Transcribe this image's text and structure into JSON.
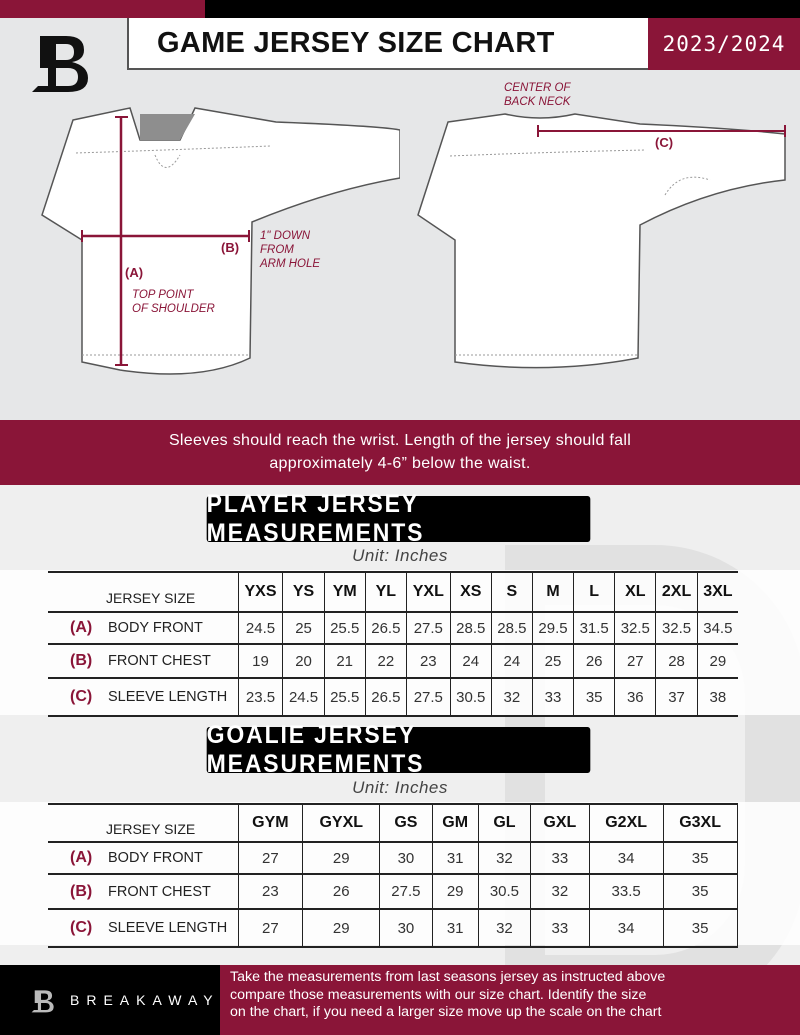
{
  "header": {
    "title": "GAME JERSEY SIZE CHART",
    "season": "2023/2024",
    "accent": "#8a1538"
  },
  "diagram": {
    "front": {
      "label_a": "(A)",
      "note_a": [
        "TOP POINT",
        "OF SHOULDER"
      ],
      "label_b": "(B)",
      "note_b": [
        "1\" DOWN",
        "FROM",
        "ARM HOLE"
      ]
    },
    "back": {
      "note_c": [
        "CENTER OF",
        "BACK NECK"
      ],
      "label_c": "(C)"
    }
  },
  "instruction": [
    "Sleeves should reach the wrist. Length of the jersey should fall",
    "approximately 4-6” below the waist."
  ],
  "player": {
    "title": "PLAYER JERSEY MEASUREMENTS",
    "unit": "Unit: Inches",
    "size_header": "JERSEY SIZE",
    "sizes": [
      "YXS",
      "YS",
      "YM",
      "YL",
      "YXL",
      "XS",
      "S",
      "M",
      "L",
      "XL",
      "2XL",
      "3XL"
    ],
    "rows": [
      {
        "letter": "(A)",
        "label": "BODY FRONT",
        "values": [
          "24.5",
          "25",
          "25.5",
          "26.5",
          "27.5",
          "28.5",
          "28.5",
          "29.5",
          "31.5",
          "32.5",
          "32.5",
          "34.5"
        ]
      },
      {
        "letter": "(B)",
        "label": "FRONT CHEST",
        "values": [
          "19",
          "20",
          "21",
          "22",
          "23",
          "24",
          "24",
          "25",
          "26",
          "27",
          "28",
          "29"
        ]
      },
      {
        "letter": "(C)",
        "label": "SLEEVE LENGTH",
        "values": [
          "23.5",
          "24.5",
          "25.5",
          "26.5",
          "27.5",
          "30.5",
          "32",
          "33",
          "35",
          "36",
          "37",
          "38"
        ]
      }
    ]
  },
  "goalie": {
    "title": "GOALIE JERSEY MEASUREMENTS",
    "unit": "Unit: Inches",
    "size_header": "JERSEY SIZE",
    "sizes": [
      "GYM",
      "GYXL",
      "GS",
      "GM",
      "GL",
      "GXL",
      "G2XL",
      "G3XL",
      ""
    ],
    "rows": [
      {
        "letter": "(A)",
        "label": "BODY FRONT",
        "values": [
          "27",
          "29",
          "30",
          "31",
          "32",
          "33",
          "34",
          "35",
          ""
        ]
      },
      {
        "letter": "(B)",
        "label": "FRONT CHEST",
        "values": [
          "23",
          "26",
          "27.5",
          "29",
          "30.5",
          "32",
          "33.5",
          "35",
          ""
        ]
      },
      {
        "letter": "(C)",
        "label": "SLEEVE LENGTH",
        "values": [
          "27",
          "29",
          "30",
          "31",
          "32",
          "33",
          "34",
          "35",
          ""
        ]
      }
    ]
  },
  "footer": {
    "brand": "BREAKAWAY",
    "text": [
      "Take the measurements from last seasons jersey as instructed above",
      "compare those measurements  with our size chart. Identify the size",
      "on the chart, if you need a larger size move up the scale on the chart"
    ]
  }
}
